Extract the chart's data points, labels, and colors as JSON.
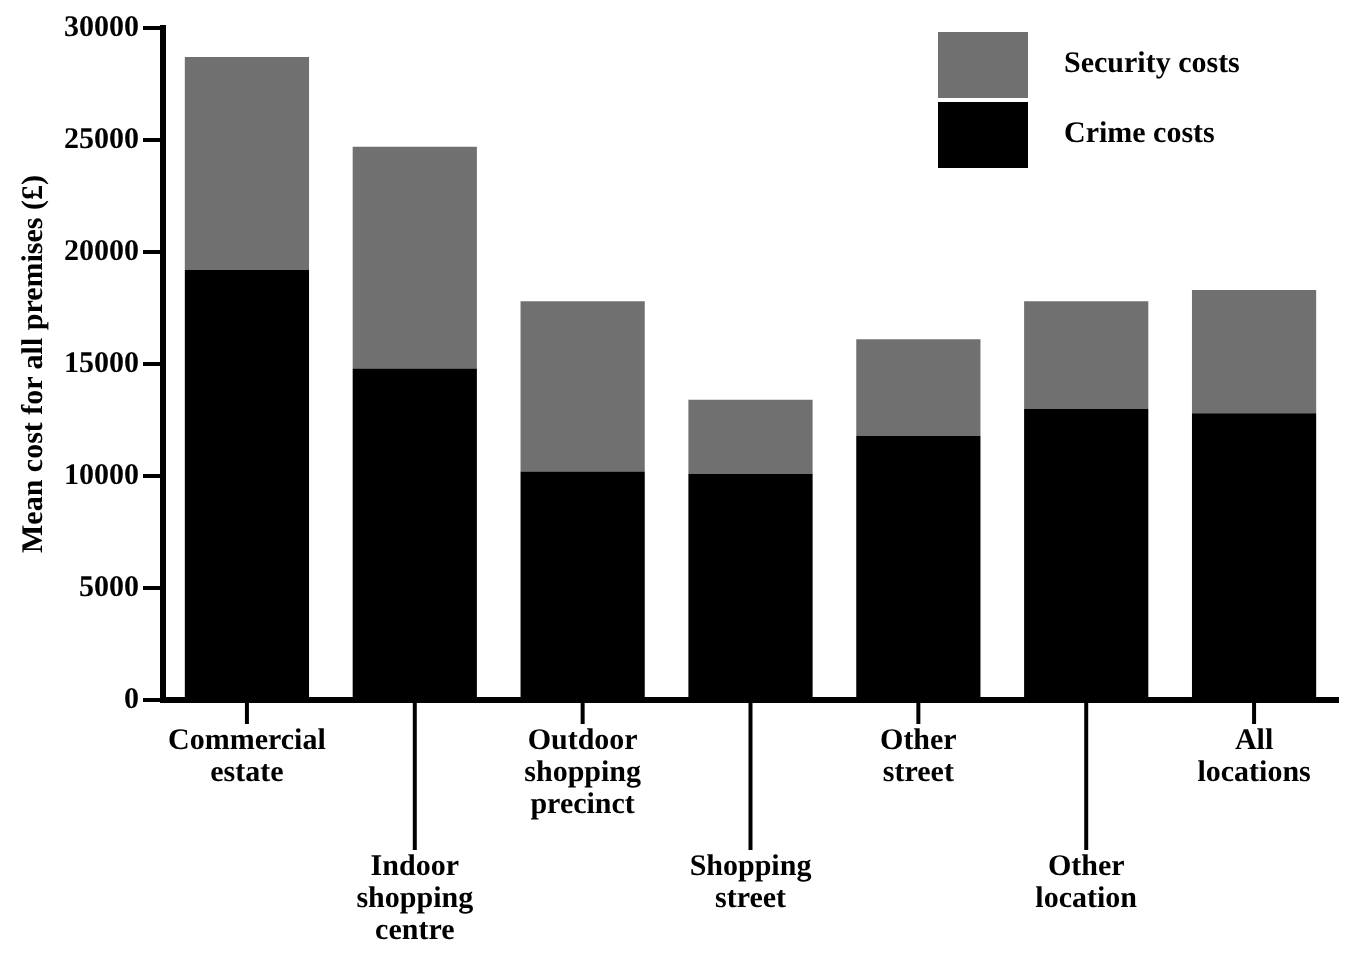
{
  "chart_data": {
    "type": "bar",
    "stacked": true,
    "ylabel": "Mean cost for all premises (£)",
    "categories": [
      "Commercial\nestate",
      "Indoor\nshopping\ncentre",
      "Outdoor\nshopping\nprecinct",
      "Shopping\nstreet",
      "Other\nstreet",
      "Other\nlocation",
      "All\nlocations"
    ],
    "series": [
      {
        "name": "Crime costs",
        "color": "#000000",
        "values": [
          19200,
          14800,
          10200,
          10100,
          11800,
          13000,
          12800
        ]
      },
      {
        "name": "Security costs",
        "color": "#707070",
        "values": [
          9500,
          9900,
          7600,
          3300,
          4300,
          4800,
          5500
        ]
      }
    ],
    "ylim": [
      0,
      30000
    ],
    "yticks": [
      0,
      5000,
      10000,
      15000,
      20000,
      25000,
      30000
    ],
    "grid": false,
    "legend": "top right"
  }
}
